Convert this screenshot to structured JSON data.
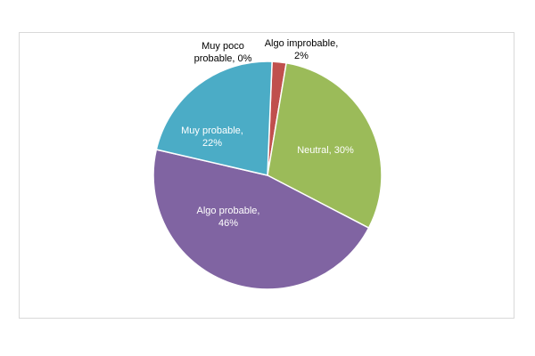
{
  "chart_data": {
    "type": "pie",
    "title": "",
    "slices": [
      {
        "label_lines": [
          "Muy poco",
          "probable, 0%"
        ],
        "category": "Muy poco probable",
        "value": 0,
        "percent_label": "0%",
        "color": "#c0504d"
      },
      {
        "label_lines": [
          "Algo improbable,",
          "2%"
        ],
        "category": "Algo improbable",
        "value": 2,
        "percent_label": "2%",
        "color": "#c0504d"
      },
      {
        "label_lines": [
          "Neutral, 30%"
        ],
        "category": "Neutral",
        "value": 30,
        "percent_label": "30%",
        "color": "#9bbb59"
      },
      {
        "label_lines": [
          "Algo probable,",
          "46%"
        ],
        "category": "Algo probable",
        "value": 46,
        "percent_label": "46%",
        "color": "#8064a2"
      },
      {
        "label_lines": [
          "Muy probable,",
          "22%"
        ],
        "category": "Muy probable",
        "value": 22,
        "percent_label": "22%",
        "color": "#4bacc6"
      }
    ],
    "legend": "none"
  }
}
